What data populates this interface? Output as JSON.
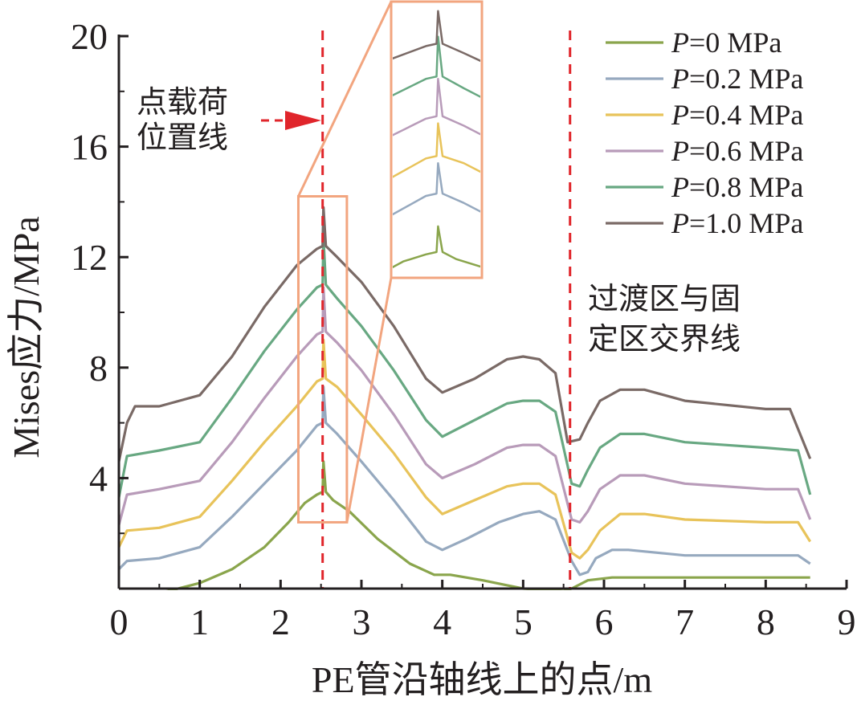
{
  "chart_data": {
    "type": "line",
    "xlabel": "PE管沿轴线上的点/m",
    "ylabel": "Mises应力/MPa",
    "xlim": [
      0,
      9
    ],
    "ylim": [
      0,
      20
    ],
    "xticks": [
      0,
      1,
      2,
      3,
      4,
      5,
      6,
      7,
      8,
      9
    ],
    "yticks": [
      4,
      8,
      12,
      16,
      20
    ],
    "grid": false,
    "legend_position": "top-right",
    "colors": {
      "axis": "#231f20",
      "refline": "#e0252b",
      "inset_box": "#f2a57f"
    },
    "legend_prefix": "P",
    "series": [
      {
        "name": "=0 MPa",
        "color": "#8aa54c",
        "points": [
          [
            0,
            -0.2
          ],
          [
            0.3,
            -0.2
          ],
          [
            0.6,
            -0.1
          ],
          [
            1.0,
            0.2
          ],
          [
            1.4,
            0.7
          ],
          [
            1.8,
            1.5
          ],
          [
            2.1,
            2.4
          ],
          [
            2.3,
            3.1
          ],
          [
            2.45,
            3.4
          ],
          [
            2.52,
            3.5
          ],
          [
            2.53,
            4.6
          ],
          [
            2.56,
            3.5
          ],
          [
            2.65,
            3.2
          ],
          [
            2.85,
            2.8
          ],
          [
            3.2,
            1.8
          ],
          [
            3.6,
            0.9
          ],
          [
            3.9,
            0.5
          ],
          [
            4.1,
            0.5
          ],
          [
            4.5,
            0.3
          ],
          [
            5.0,
            0.0
          ],
          [
            5.5,
            -0.1
          ],
          [
            5.6,
            0.0
          ],
          [
            5.8,
            0.3
          ],
          [
            6.1,
            0.4
          ],
          [
            7.0,
            0.4
          ],
          [
            8.0,
            0.4
          ],
          [
            8.55,
            0.4
          ]
        ]
      },
      {
        "name": "=0.2 MPa",
        "color": "#96a9bf",
        "points": [
          [
            0,
            0.7
          ],
          [
            0.1,
            1.0
          ],
          [
            0.5,
            1.1
          ],
          [
            1.0,
            1.5
          ],
          [
            1.4,
            2.6
          ],
          [
            1.8,
            3.8
          ],
          [
            2.2,
            5.0
          ],
          [
            2.45,
            5.9
          ],
          [
            2.52,
            6.0
          ],
          [
            2.53,
            7.3
          ],
          [
            2.56,
            6.0
          ],
          [
            2.7,
            5.6
          ],
          [
            3.0,
            4.6
          ],
          [
            3.4,
            3.2
          ],
          [
            3.8,
            1.7
          ],
          [
            4.0,
            1.4
          ],
          [
            4.3,
            1.8
          ],
          [
            4.7,
            2.4
          ],
          [
            5.0,
            2.7
          ],
          [
            5.2,
            2.8
          ],
          [
            5.4,
            2.5
          ],
          [
            5.6,
            1.0
          ],
          [
            5.7,
            0.5
          ],
          [
            5.8,
            0.6
          ],
          [
            5.9,
            1.1
          ],
          [
            6.1,
            1.4
          ],
          [
            6.3,
            1.4
          ],
          [
            7.0,
            1.2
          ],
          [
            8.0,
            1.2
          ],
          [
            8.4,
            1.2
          ],
          [
            8.55,
            0.9
          ]
        ]
      },
      {
        "name": "=0.4 MPa",
        "color": "#e8c35a",
        "points": [
          [
            0,
            1.5
          ],
          [
            0.1,
            2.1
          ],
          [
            0.5,
            2.2
          ],
          [
            1.0,
            2.6
          ],
          [
            1.4,
            3.9
          ],
          [
            1.8,
            5.3
          ],
          [
            2.2,
            6.6
          ],
          [
            2.45,
            7.5
          ],
          [
            2.52,
            7.6
          ],
          [
            2.53,
            9.0
          ],
          [
            2.56,
            7.6
          ],
          [
            2.7,
            7.3
          ],
          [
            3.0,
            6.3
          ],
          [
            3.4,
            4.9
          ],
          [
            3.8,
            3.3
          ],
          [
            4.0,
            2.7
          ],
          [
            4.4,
            3.2
          ],
          [
            4.8,
            3.7
          ],
          [
            5.0,
            3.8
          ],
          [
            5.2,
            3.8
          ],
          [
            5.4,
            3.4
          ],
          [
            5.6,
            1.3
          ],
          [
            5.7,
            1.1
          ],
          [
            5.8,
            1.4
          ],
          [
            5.95,
            2.1
          ],
          [
            6.2,
            2.7
          ],
          [
            6.5,
            2.7
          ],
          [
            7.0,
            2.5
          ],
          [
            8.0,
            2.4
          ],
          [
            8.4,
            2.4
          ],
          [
            8.55,
            1.7
          ]
        ]
      },
      {
        "name": "=0.6 MPa",
        "color": "#b89bb9",
        "points": [
          [
            0,
            2.3
          ],
          [
            0.1,
            3.4
          ],
          [
            0.5,
            3.6
          ],
          [
            1.0,
            3.9
          ],
          [
            1.4,
            5.3
          ],
          [
            1.8,
            6.9
          ],
          [
            2.2,
            8.4
          ],
          [
            2.45,
            9.2
          ],
          [
            2.52,
            9.3
          ],
          [
            2.53,
            10.9
          ],
          [
            2.56,
            9.3
          ],
          [
            2.7,
            8.9
          ],
          [
            3.0,
            7.9
          ],
          [
            3.4,
            6.3
          ],
          [
            3.8,
            4.5
          ],
          [
            4.0,
            4.0
          ],
          [
            4.4,
            4.5
          ],
          [
            4.8,
            5.1
          ],
          [
            5.0,
            5.2
          ],
          [
            5.2,
            5.2
          ],
          [
            5.4,
            4.8
          ],
          [
            5.6,
            2.5
          ],
          [
            5.7,
            2.4
          ],
          [
            5.8,
            2.8
          ],
          [
            5.95,
            3.6
          ],
          [
            6.2,
            4.1
          ],
          [
            6.5,
            4.1
          ],
          [
            7.0,
            3.8
          ],
          [
            8.0,
            3.6
          ],
          [
            8.4,
            3.6
          ],
          [
            8.55,
            2.5
          ]
        ]
      },
      {
        "name": "=0.8 MPa",
        "color": "#68a882",
        "points": [
          [
            0,
            3.3
          ],
          [
            0.1,
            4.8
          ],
          [
            0.5,
            5.0
          ],
          [
            1.0,
            5.3
          ],
          [
            1.4,
            6.9
          ],
          [
            1.8,
            8.6
          ],
          [
            2.2,
            10.1
          ],
          [
            2.45,
            10.9
          ],
          [
            2.52,
            11.0
          ],
          [
            2.53,
            12.7
          ],
          [
            2.56,
            11.0
          ],
          [
            2.7,
            10.5
          ],
          [
            3.0,
            9.5
          ],
          [
            3.4,
            7.9
          ],
          [
            3.8,
            6.1
          ],
          [
            4.0,
            5.5
          ],
          [
            4.4,
            6.1
          ],
          [
            4.8,
            6.7
          ],
          [
            5.0,
            6.8
          ],
          [
            5.2,
            6.8
          ],
          [
            5.4,
            6.4
          ],
          [
            5.6,
            3.8
          ],
          [
            5.7,
            3.7
          ],
          [
            5.8,
            4.3
          ],
          [
            5.95,
            5.1
          ],
          [
            6.2,
            5.6
          ],
          [
            6.5,
            5.6
          ],
          [
            7.0,
            5.3
          ],
          [
            8.0,
            5.1
          ],
          [
            8.4,
            5.0
          ],
          [
            8.55,
            3.4
          ]
        ]
      },
      {
        "name": "=1.0 MPa",
        "color": "#7a6a66",
        "points": [
          [
            0,
            4.6
          ],
          [
            0.1,
            6.0
          ],
          [
            0.2,
            6.6
          ],
          [
            0.5,
            6.6
          ],
          [
            1.0,
            7.0
          ],
          [
            1.4,
            8.4
          ],
          [
            1.8,
            10.2
          ],
          [
            2.2,
            11.7
          ],
          [
            2.45,
            12.3
          ],
          [
            2.52,
            12.4
          ],
          [
            2.53,
            13.8
          ],
          [
            2.56,
            12.4
          ],
          [
            2.7,
            12.0
          ],
          [
            3.0,
            11.1
          ],
          [
            3.4,
            9.5
          ],
          [
            3.8,
            7.6
          ],
          [
            4.0,
            7.1
          ],
          [
            4.4,
            7.6
          ],
          [
            4.8,
            8.3
          ],
          [
            5.0,
            8.4
          ],
          [
            5.2,
            8.3
          ],
          [
            5.4,
            7.8
          ],
          [
            5.55,
            5.3
          ],
          [
            5.7,
            5.4
          ],
          [
            5.8,
            6.0
          ],
          [
            5.95,
            6.8
          ],
          [
            6.2,
            7.2
          ],
          [
            6.5,
            7.2
          ],
          [
            7.0,
            6.8
          ],
          [
            8.0,
            6.5
          ],
          [
            8.3,
            6.5
          ],
          [
            8.55,
            4.7
          ]
        ]
      }
    ],
    "annotations": {
      "load_line_x": 2.52,
      "load_line_label": "点载荷\n位置线",
      "boundary_line_x": 5.58,
      "boundary_line_label": "过渡区与固\n定区交界线",
      "inset_source_box": {
        "x": [
          2.22,
          2.82
        ],
        "y": [
          2.4,
          14.2
        ]
      }
    }
  }
}
